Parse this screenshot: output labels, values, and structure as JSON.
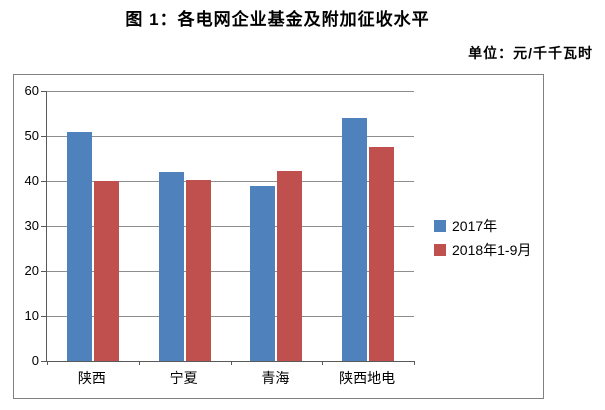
{
  "title": "图 1：各电网企业基金及附加征收水平",
  "unit_label": "单位：元/千千瓦时",
  "chart_data": {
    "type": "bar",
    "title": "图 1：各电网企业基金及附加征收水平",
    "unit": "元/千千瓦时",
    "categories": [
      "陕西",
      "宁夏",
      "青海",
      "陕西地电"
    ],
    "series": [
      {
        "name": "2017年",
        "color": "#4F81BD",
        "values": [
          50.8,
          41.9,
          38.8,
          53.9
        ]
      },
      {
        "name": "2018年1-9月",
        "color": "#C0504D",
        "values": [
          40.0,
          40.3,
          42.3,
          47.5
        ]
      }
    ],
    "ylim": [
      0,
      60
    ],
    "yticks": [
      0,
      10,
      20,
      30,
      40,
      50,
      60
    ],
    "xlabel": "",
    "ylabel": "",
    "grid": true,
    "legend_position": "right-middle"
  },
  "colors": {
    "series_2017": "#4F81BD",
    "series_2018": "#C0504D"
  }
}
